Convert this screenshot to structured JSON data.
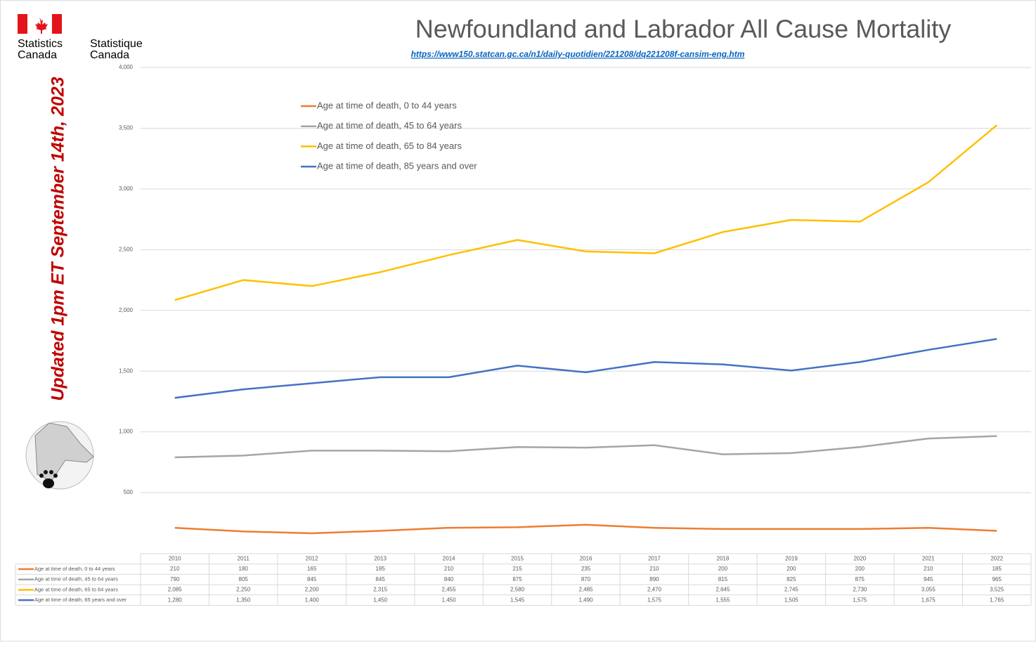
{
  "chart_data": {
    "type": "line",
    "title": "Newfoundland and Labrador All Cause Mortality",
    "subtitle": "https://www150.statcan.gc.ca/n1/daily-quotidien/221208/dq221208f-cansim-eng.htm",
    "annotation": "Updated 1pm ET September 14th, 2023",
    "logo_labels": [
      "Statistics",
      "Canada",
      "Statistique",
      "Canada"
    ],
    "categories": [
      "2010",
      "2011",
      "2012",
      "2013",
      "2014",
      "2015",
      "2016",
      "2017",
      "2018",
      "2019",
      "2020",
      "2021",
      "2022"
    ],
    "ylim": [
      0,
      4000
    ],
    "yticks": [
      500,
      {
        "value": 1000,
        "label": "1,000"
      },
      {
        "value": 1500,
        "label": "1,500"
      },
      {
        "value": 2000,
        "label": "2,000"
      },
      {
        "value": 2500,
        "label": "2,500"
      },
      {
        "value": 3000,
        "label": "3,000"
      },
      {
        "value": 3500,
        "label": "3,500"
      },
      {
        "value": 4000,
        "label": "4,000"
      }
    ],
    "grid": true,
    "series": [
      {
        "name": "Age at time of death, 0 to 44 years",
        "color": "#ED7D31",
        "values": [
          210,
          180,
          165,
          185,
          210,
          215,
          235,
          210,
          200,
          200,
          200,
          210,
          185
        ],
        "value_labels": [
          "210",
          "180",
          "165",
          "185",
          "210",
          "215",
          "235",
          "210",
          "200",
          "200",
          "200",
          "210",
          "185"
        ]
      },
      {
        "name": "Age at time of death, 45 to 64 years",
        "color": "#A5A5A5",
        "values": [
          790,
          805,
          845,
          845,
          840,
          875,
          870,
          890,
          815,
          825,
          875,
          945,
          965
        ],
        "value_labels": [
          "790",
          "805",
          "845",
          "845",
          "840",
          "875",
          "870",
          "890",
          "815",
          "825",
          "875",
          "945",
          "965"
        ]
      },
      {
        "name": "Age at time of death, 65 to 84 years",
        "color": "#FFC000",
        "values": [
          2085,
          2250,
          2200,
          2315,
          2455,
          2580,
          2485,
          2470,
          2645,
          2745,
          2730,
          3055,
          3525
        ],
        "value_labels": [
          "2,085",
          "2,250",
          "2,200",
          "2,315",
          "2,455",
          "2,580",
          "2,485",
          "2,470",
          "2,645",
          "2,745",
          "2,730",
          "3,055",
          "3,525"
        ]
      },
      {
        "name": "Age at time of death, 85 years and over",
        "color": "#4472C4",
        "values": [
          1280,
          1350,
          1400,
          1450,
          1450,
          1545,
          1490,
          1575,
          1555,
          1505,
          1575,
          1675,
          1765
        ],
        "value_labels": [
          "1,280",
          "1,350",
          "1,400",
          "1,450",
          "1,450",
          "1,545",
          "1,490",
          "1,575",
          "1,555",
          "1,505",
          "1,575",
          "1,675",
          "1,765"
        ]
      }
    ]
  }
}
